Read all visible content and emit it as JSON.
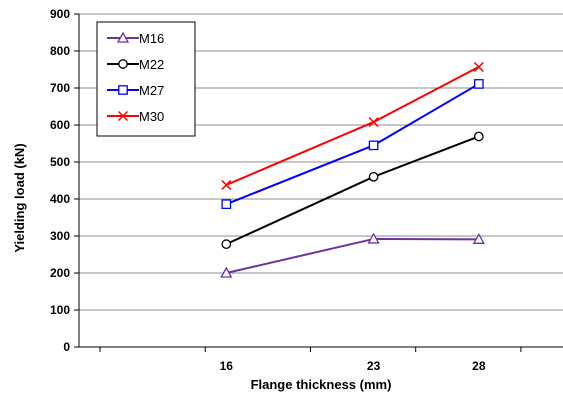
{
  "chart_data": {
    "type": "line",
    "xlabel": "Flange thickness (mm)",
    "ylabel": "Yielding load (kN)",
    "x": [
      16,
      23,
      28
    ],
    "xlim": [
      9,
      32
    ],
    "x_ticks": [
      16,
      23,
      28
    ],
    "ylim": [
      0,
      900
    ],
    "y_ticks": [
      0,
      100,
      200,
      300,
      400,
      500,
      600,
      700,
      800,
      900
    ],
    "grid": "horizontal",
    "legend_position": "top-left",
    "series": [
      {
        "name": "M16",
        "values": [
          200,
          292,
          291
        ],
        "color": "#7030a0",
        "marker": "triangle"
      },
      {
        "name": "M22",
        "values": [
          278,
          460,
          569
        ],
        "color": "#000000",
        "marker": "circle"
      },
      {
        "name": "M27",
        "values": [
          386,
          545,
          711
        ],
        "color": "#0000ff",
        "marker": "square"
      },
      {
        "name": "M30",
        "values": [
          438,
          608,
          757
        ],
        "color": "#ff0000",
        "marker": "x"
      }
    ]
  }
}
